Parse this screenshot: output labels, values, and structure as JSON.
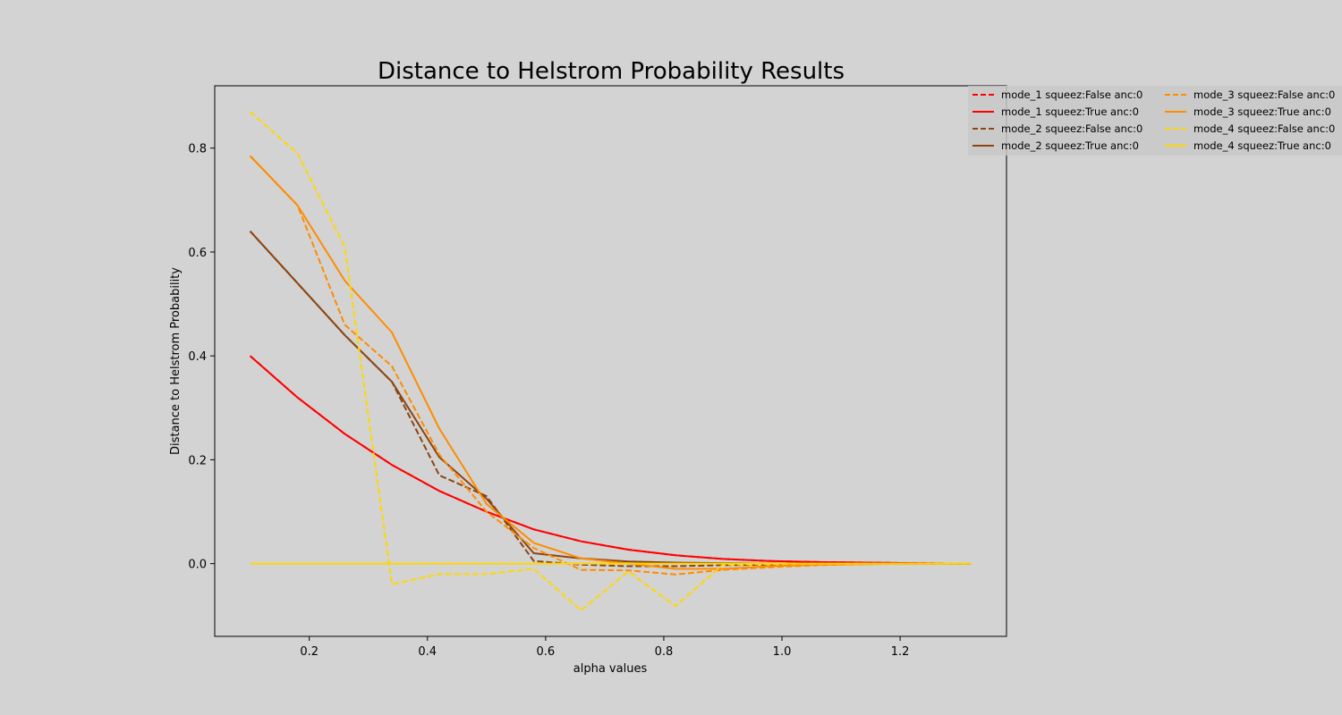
{
  "chart_data": {
    "type": "line",
    "title": "Distance to Helstrom Probability Results",
    "xlabel": "alpha values",
    "ylabel": "Distance to Helstrom Probability",
    "xlim": [
      0.04,
      1.38
    ],
    "ylim": [
      -0.14,
      0.92
    ],
    "xticks": [
      "0.2",
      "0.4",
      "0.6",
      "0.8",
      "1.0",
      "1.2"
    ],
    "yticks": [
      "0.0",
      "0.2",
      "0.4",
      "0.6",
      "0.8"
    ],
    "legend_position": "upper-right, outside plot",
    "x": [
      0.1,
      0.18,
      0.26,
      0.34,
      0.42,
      0.5,
      0.58,
      0.66,
      0.74,
      0.82,
      0.9,
      0.98,
      1.06,
      1.14,
      1.22,
      1.3,
      1.32
    ],
    "series": [
      {
        "name": "mode_1 squeez:False anc:0",
        "color": "#ff0000",
        "dash": true,
        "values": [
          0.4,
          0.32,
          0.25,
          0.19,
          0.14,
          0.1,
          0.066,
          0.043,
          0.027,
          0.016,
          0.009,
          0.005,
          0.003,
          0.002,
          0.001,
          0.0,
          0.0
        ]
      },
      {
        "name": "mode_1 squeez:True anc:0",
        "color": "#ff0000",
        "dash": false,
        "values": [
          0.4,
          0.32,
          0.25,
          0.19,
          0.14,
          0.1,
          0.066,
          0.043,
          0.027,
          0.016,
          0.009,
          0.005,
          0.003,
          0.002,
          0.001,
          0.0,
          0.0
        ]
      },
      {
        "name": "mode_2 squeez:False anc:0",
        "color": "#8b4513",
        "dash": true,
        "values": [
          0.64,
          0.54,
          0.44,
          0.35,
          0.17,
          0.13,
          0.005,
          -0.002,
          -0.005,
          -0.005,
          -0.003,
          -0.002,
          -0.001,
          0.0,
          0.0,
          0.0,
          0.0
        ]
      },
      {
        "name": "mode_2 squeez:True anc:0",
        "color": "#8b4513",
        "dash": false,
        "values": [
          0.64,
          0.54,
          0.44,
          0.35,
          0.205,
          0.125,
          0.02,
          0.01,
          0.004,
          0.002,
          0.001,
          0.0,
          0.0,
          0.0,
          0.0,
          0.0,
          0.0
        ]
      },
      {
        "name": "mode_3 squeez:False anc:0",
        "color": "#ff8c00",
        "dash": true,
        "values": [
          0.785,
          0.69,
          0.46,
          0.38,
          0.21,
          0.1,
          0.03,
          -0.012,
          -0.013,
          -0.021,
          -0.012,
          -0.007,
          -0.003,
          -0.001,
          0.0,
          0.0,
          0.0
        ]
      },
      {
        "name": "mode_3 squeez:True anc:0",
        "color": "#ff8c00",
        "dash": false,
        "values": [
          0.785,
          0.69,
          0.545,
          0.445,
          0.26,
          0.115,
          0.04,
          0.01,
          0.0,
          -0.01,
          -0.01,
          -0.005,
          -0.002,
          -0.001,
          0.0,
          0.0,
          0.0
        ]
      },
      {
        "name": "mode_4 squeez:False anc:0",
        "color": "#ffd700",
        "dash": true,
        "values": [
          0.87,
          0.79,
          0.61,
          -0.04,
          -0.02,
          -0.02,
          -0.01,
          -0.09,
          -0.015,
          -0.082,
          -0.002,
          -0.001,
          0.0,
          0.0,
          0.0,
          0.0,
          0.0
        ]
      },
      {
        "name": "mode_4 squeez:True anc:0",
        "color": "#ffd700",
        "dash": false,
        "values": [
          0.0,
          0.0,
          0.0,
          0.0,
          0.0,
          0.0,
          0.0,
          0.0,
          0.0,
          0.0,
          0.0,
          0.0,
          0.0,
          0.0,
          0.0,
          0.0,
          0.0
        ]
      }
    ]
  }
}
